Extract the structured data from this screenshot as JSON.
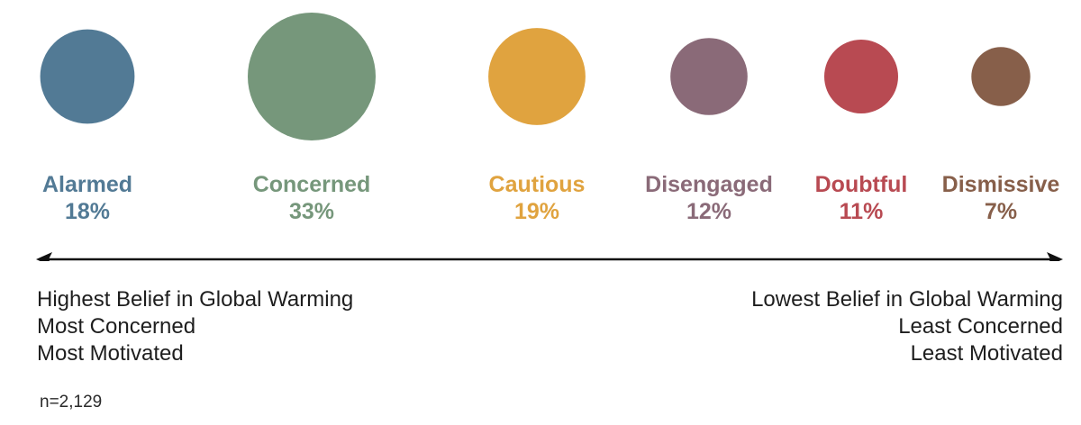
{
  "chart_data": {
    "type": "bubble",
    "segments": [
      {
        "name": "Alarmed",
        "value": 18,
        "label": "18%",
        "color": "#527a95"
      },
      {
        "name": "Concerned",
        "value": 33,
        "label": "33%",
        "color": "#76977b"
      },
      {
        "name": "Cautious",
        "value": 19,
        "label": "19%",
        "color": "#e0a33f"
      },
      {
        "name": "Disengaged",
        "value": 12,
        "label": "12%",
        "color": "#8a6a78"
      },
      {
        "name": "Doubtful",
        "value": 11,
        "label": "11%",
        "color": "#b84a52"
      },
      {
        "name": "Dismissive",
        "value": 7,
        "label": "7%",
        "color": "#875f4a"
      }
    ],
    "axis": {
      "left_lines": [
        "Highest Belief in Global Warming",
        "Most Concerned",
        "Most Motivated"
      ],
      "right_lines": [
        "Lowest Belief in Global Warming",
        "Least Concerned",
        "Least Motivated"
      ]
    },
    "note": "n=2,129"
  }
}
